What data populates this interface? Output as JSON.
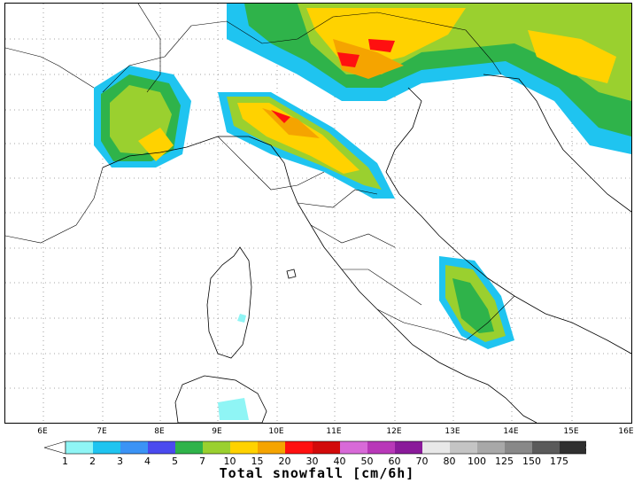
{
  "map": {
    "region": "Northern and Central Italy",
    "variable": "Total snowfall",
    "lon_labels": [
      "6E",
      "7E",
      "8E",
      "9E",
      "10E",
      "11E",
      "12E",
      "13E",
      "14E",
      "15E",
      "16E"
    ]
  },
  "legend": {
    "title": "Total snowfall [cm/6h]",
    "values": [
      "1",
      "2",
      "3",
      "4",
      "5",
      "7",
      "10",
      "15",
      "20",
      "30",
      "40",
      "50",
      "60",
      "70",
      "80",
      "100",
      "125",
      "150",
      "175"
    ],
    "colors": [
      "#8ff5f5",
      "#1fc4f0",
      "#3b93f5",
      "#4a4aef",
      "#2fb34a",
      "#9ad02f",
      "#ffd200",
      "#f5a400",
      "#ff1010",
      "#d20a0a",
      "#d86ad8",
      "#b838b8",
      "#8a1a9a",
      "#e8e8e8",
      "#c4c4c4",
      "#a8a8a8",
      "#888888",
      "#5a5a5a",
      "#303030"
    ],
    "open_end_colors": [
      "#ffffff",
      "#888888"
    ]
  }
}
